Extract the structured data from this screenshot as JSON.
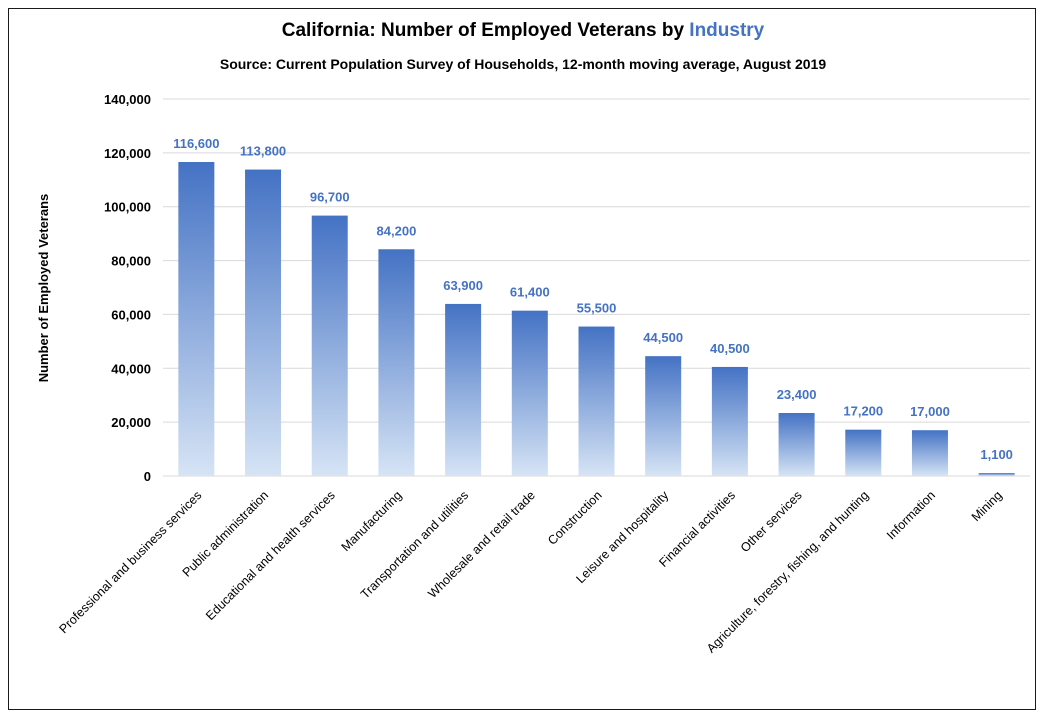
{
  "chart_data": {
    "type": "bar",
    "title_prefix": "California: Number of Employed Veterans by ",
    "title_highlight": "Industry",
    "subtitle": "Source: Current Population Survey of Households, 12-month moving average, August 2019",
    "xlabel": "",
    "ylabel": "Number of Employed Veterans",
    "ylim": [
      0,
      140000
    ],
    "y_ticks": [
      "0",
      "20,000",
      "40,000",
      "60,000",
      "80,000",
      "100,000",
      "120,000",
      "140,000"
    ],
    "y_tick_values": [
      0,
      20000,
      40000,
      60000,
      80000,
      100000,
      120000,
      140000
    ],
    "grid": true,
    "categories": [
      "Professional and business services",
      "Public administration",
      "Educational and health services",
      "Manufacturing",
      "Transportation and utilities",
      "Wholesale and retail trade",
      "Construction",
      "Leisure and hospitality",
      "Financial activities",
      "Other services",
      "Agriculture, forestry, fishing, and hunting",
      "Information",
      "Mining"
    ],
    "values": [
      116600,
      113800,
      96700,
      84200,
      63900,
      61400,
      55500,
      44500,
      40500,
      23400,
      17200,
      17000,
      1100
    ],
    "value_labels": [
      "116,600",
      "113,800",
      "96,700",
      "84,200",
      "63,900",
      "61,400",
      "55,500",
      "44,500",
      "40,500",
      "23,400",
      "17,200",
      "17,000",
      "1,100"
    ],
    "colors": {
      "bar_top": "#4472C4",
      "bar_bottom": "#D6E4F5",
      "label": "#4472C4",
      "grid": "#D9D9D9"
    }
  }
}
